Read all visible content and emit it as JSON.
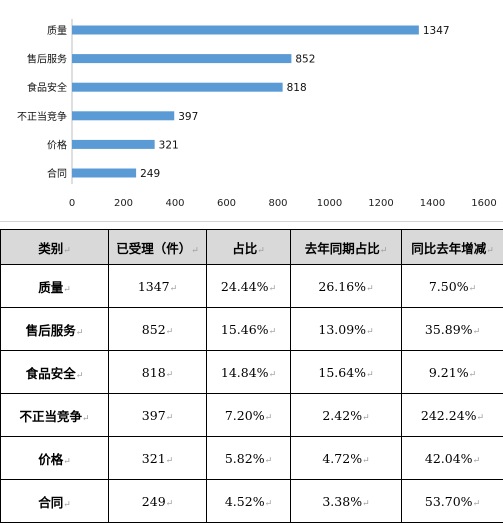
{
  "chart_data": {
    "type": "bar",
    "orientation": "horizontal",
    "categories": [
      "质量",
      "售后服务",
      "食品安全",
      "不正当竞争",
      "价格",
      "合同"
    ],
    "values": [
      1347,
      852,
      818,
      397,
      321,
      249
    ],
    "xlim": [
      0,
      1600
    ],
    "xticks": [
      "0",
      "200",
      "400",
      "600",
      "800",
      "1000",
      "1200",
      "1400",
      "1600"
    ],
    "grid": false,
    "legend": "none",
    "bar_color": "#5b9bd5"
  },
  "table": {
    "headers": [
      "类别",
      "已受理（件）",
      "占比",
      "去年同期占比",
      "同比去年增减"
    ],
    "rows": [
      [
        "质量",
        "1347",
        "24.44%",
        "26.16%",
        "7.50%"
      ],
      [
        "售后服务",
        "852",
        "15.46%",
        "13.09%",
        "35.89%"
      ],
      [
        "食品安全",
        "818",
        "14.84%",
        "15.64%",
        "9.21%"
      ],
      [
        "不正当竞争",
        "397",
        "7.20%",
        "2.42%",
        "242.24%"
      ],
      [
        "价格",
        "321",
        "5.82%",
        "4.72%",
        "42.04%"
      ],
      [
        "合同",
        "249",
        "4.52%",
        "3.38%",
        "53.70%"
      ]
    ],
    "mark_glyph": "↵",
    "header_bg": "#d9d9d9"
  }
}
